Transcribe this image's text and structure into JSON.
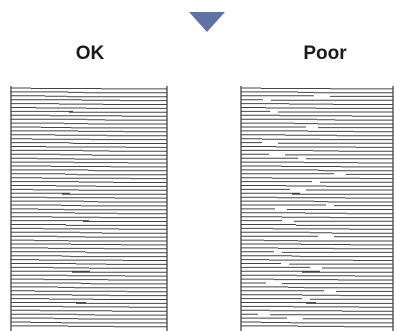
{
  "pointer": {
    "icon": "triangle-down-icon",
    "color": "#6071a6"
  },
  "samples": [
    {
      "label": "OK",
      "quality": "ok"
    },
    {
      "label": "Poor",
      "quality": "poor"
    }
  ],
  "line_color": "#444444"
}
